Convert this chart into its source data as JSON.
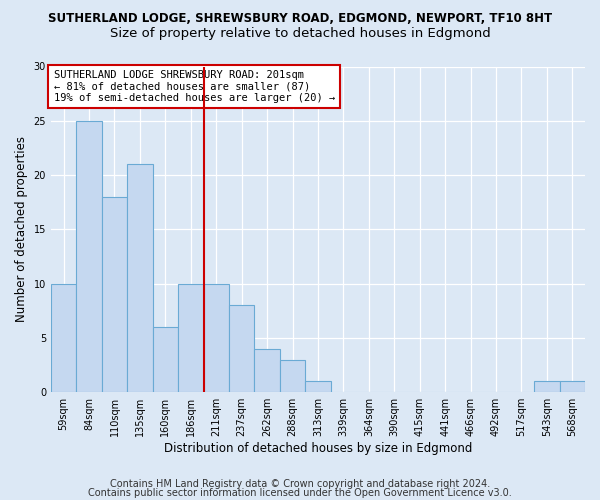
{
  "title1": "SUTHERLAND LODGE, SHREWSBURY ROAD, EDGMOND, NEWPORT, TF10 8HT",
  "title2": "Size of property relative to detached houses in Edgmond",
  "xlabel": "Distribution of detached houses by size in Edgmond",
  "ylabel": "Number of detached properties",
  "bin_labels": [
    "59sqm",
    "84sqm",
    "110sqm",
    "135sqm",
    "160sqm",
    "186sqm",
    "211sqm",
    "237sqm",
    "262sqm",
    "288sqm",
    "313sqm",
    "339sqm",
    "364sqm",
    "390sqm",
    "415sqm",
    "441sqm",
    "466sqm",
    "492sqm",
    "517sqm",
    "543sqm",
    "568sqm"
  ],
  "values": [
    10,
    25,
    18,
    21,
    6,
    10,
    10,
    8,
    4,
    3,
    1,
    0,
    0,
    0,
    0,
    0,
    0,
    0,
    0,
    1,
    1
  ],
  "bar_color": "#c5d8f0",
  "bar_edge_color": "#6aaad4",
  "vline_x_bin": 5.5,
  "vline_color": "#cc0000",
  "annotation_text": "SUTHERLAND LODGE SHREWSBURY ROAD: 201sqm\n← 81% of detached houses are smaller (87)\n19% of semi-detached houses are larger (20) →",
  "annotation_box_color": "#ffffff",
  "annotation_box_edge": "#cc0000",
  "ylim": [
    0,
    30
  ],
  "yticks": [
    0,
    5,
    10,
    15,
    20,
    25,
    30
  ],
  "footer1": "Contains HM Land Registry data © Crown copyright and database right 2024.",
  "footer2": "Contains public sector information licensed under the Open Government Licence v3.0.",
  "background_color": "#dce8f5",
  "plot_bg_color": "#dce8f5",
  "title1_fontsize": 8.5,
  "title2_fontsize": 9.5,
  "xlabel_fontsize": 8.5,
  "ylabel_fontsize": 8.5,
  "tick_fontsize": 7,
  "footer_fontsize": 7,
  "annotation_fontsize": 7.5
}
